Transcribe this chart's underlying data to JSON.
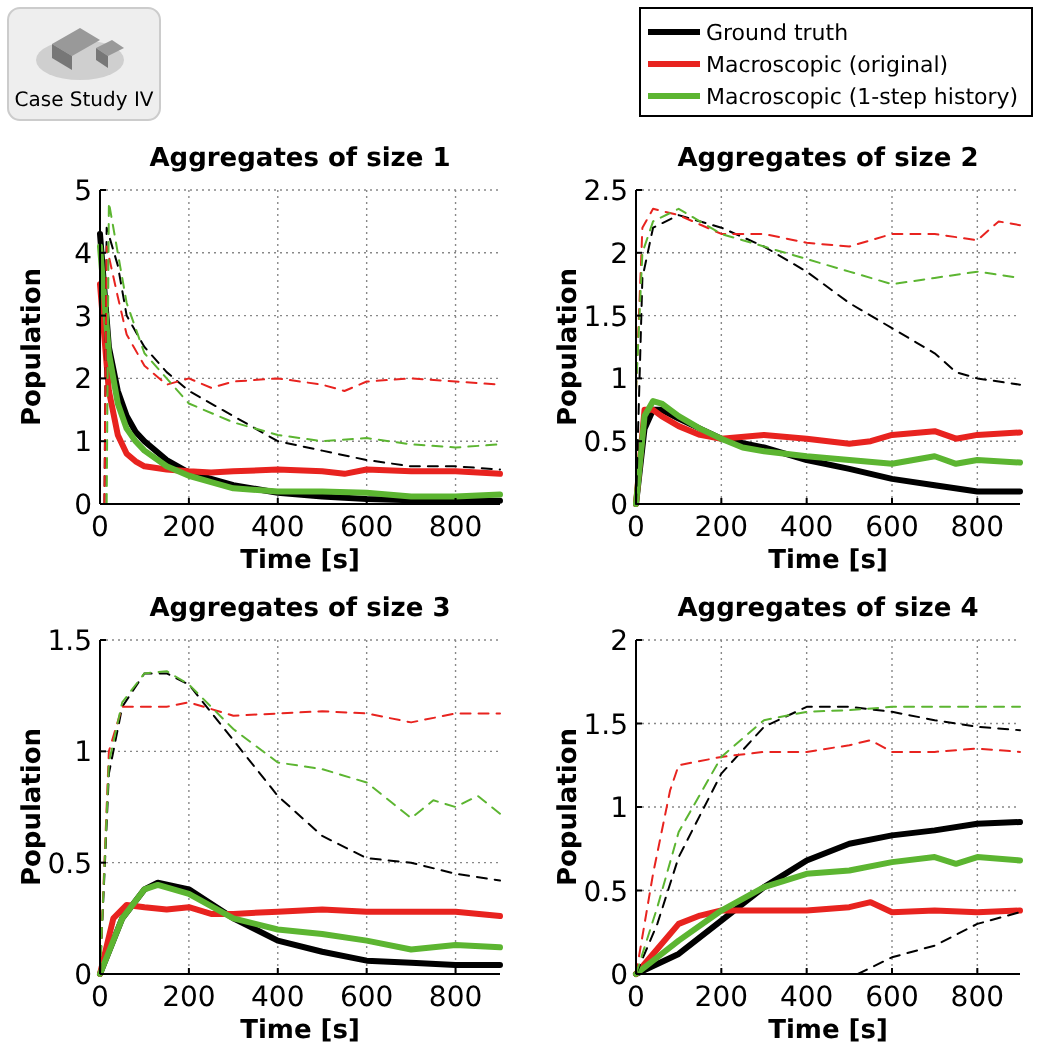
{
  "chart_data": [
    {
      "type": "line",
      "title": "Aggregates of size 1",
      "xlabel": "Time [s]",
      "ylabel": "Population",
      "xlim": [
        0,
        900
      ],
      "xticks": [
        0,
        200,
        400,
        600,
        800
      ],
      "ylim": [
        0,
        5
      ],
      "yticks": [
        0,
        1,
        2,
        3,
        4,
        5
      ],
      "grid": true,
      "annotations": [
        "Case Study IV"
      ],
      "series": [
        {
          "color": "#000000",
          "line_style": "solid",
          "x": [
            0,
            20,
            40,
            60,
            80,
            100,
            150,
            200,
            250,
            300,
            400,
            500,
            600,
            700,
            800,
            900
          ],
          "values": [
            4.3,
            2.5,
            1.8,
            1.4,
            1.15,
            1.0,
            0.7,
            0.5,
            0.4,
            0.3,
            0.18,
            0.12,
            0.08,
            0.06,
            0.05,
            0.05
          ]
        },
        {
          "color": "#e8231f",
          "line_style": "solid",
          "x": [
            0,
            20,
            40,
            60,
            80,
            100,
            150,
            200,
            250,
            300,
            400,
            500,
            550,
            600,
            700,
            800,
            900
          ],
          "values": [
            3.5,
            1.8,
            1.1,
            0.8,
            0.68,
            0.6,
            0.55,
            0.52,
            0.5,
            0.52,
            0.55,
            0.52,
            0.48,
            0.55,
            0.52,
            0.52,
            0.48
          ]
        },
        {
          "color": "#5cb531",
          "line_style": "solid",
          "x": [
            0,
            20,
            40,
            60,
            80,
            100,
            150,
            200,
            250,
            300,
            400,
            500,
            600,
            700,
            800,
            900
          ],
          "values": [
            4.1,
            2.4,
            1.6,
            1.2,
            1.0,
            0.85,
            0.6,
            0.45,
            0.35,
            0.25,
            0.2,
            0.2,
            0.18,
            0.12,
            0.12,
            0.15
          ]
        },
        {
          "color": "#000000",
          "line_style": "dashed",
          "x": [
            10,
            15,
            40,
            60,
            100,
            150,
            200,
            300,
            400,
            500,
            600,
            700,
            800,
            900
          ],
          "values": [
            0,
            4.4,
            3.8,
            3.0,
            2.5,
            2.1,
            1.8,
            1.4,
            1.0,
            0.85,
            0.7,
            0.6,
            0.6,
            0.55
          ]
        },
        {
          "color": "#e8231f",
          "line_style": "dashed",
          "x": [
            10,
            15,
            40,
            60,
            100,
            150,
            200,
            250,
            300,
            400,
            500,
            550,
            600,
            700,
            800,
            900
          ],
          "values": [
            0,
            4.1,
            3.3,
            2.7,
            2.2,
            1.9,
            2.0,
            1.85,
            1.95,
            2.0,
            1.9,
            1.8,
            1.95,
            2.0,
            1.95,
            1.9
          ]
        },
        {
          "color": "#5cb531",
          "line_style": "dashed",
          "x": [
            15,
            20,
            40,
            60,
            80,
            100,
            150,
            200,
            300,
            400,
            500,
            600,
            700,
            800,
            900
          ],
          "values": [
            0,
            4.8,
            4.0,
            3.2,
            2.8,
            2.4,
            2.0,
            1.6,
            1.3,
            1.1,
            1.0,
            1.05,
            0.95,
            0.9,
            0.95
          ]
        }
      ]
    },
    {
      "type": "line",
      "title": "Aggregates of size 2",
      "xlabel": "Time [s]",
      "ylabel": "Population",
      "xlim": [
        0,
        900
      ],
      "xticks": [
        0,
        200,
        400,
        600,
        800
      ],
      "ylim": [
        0,
        2.5
      ],
      "yticks": [
        0,
        0.5,
        1,
        1.5,
        2,
        2.5
      ],
      "grid": true,
      "legend": "top right",
      "series": [
        {
          "name": "Ground truth",
          "color": "#000000",
          "line_style": "solid",
          "x": [
            0,
            20,
            40,
            60,
            100,
            150,
            200,
            300,
            400,
            500,
            600,
            700,
            800,
            900
          ],
          "values": [
            0,
            0.6,
            0.75,
            0.75,
            0.68,
            0.6,
            0.52,
            0.45,
            0.35,
            0.28,
            0.2,
            0.15,
            0.1,
            0.1
          ]
        },
        {
          "name": "Macroscopic (original)",
          "color": "#e8231f",
          "line_style": "solid",
          "x": [
            0,
            20,
            40,
            60,
            100,
            150,
            200,
            300,
            400,
            500,
            550,
            600,
            700,
            750,
            800,
            900
          ],
          "values": [
            0,
            0.75,
            0.75,
            0.7,
            0.62,
            0.55,
            0.52,
            0.55,
            0.52,
            0.48,
            0.5,
            0.55,
            0.58,
            0.52,
            0.55,
            0.57
          ]
        },
        {
          "name": "Macroscopic (1-step history)",
          "color": "#5cb531",
          "line_style": "solid",
          "x": [
            0,
            20,
            40,
            60,
            100,
            150,
            200,
            250,
            300,
            400,
            500,
            600,
            700,
            750,
            800,
            900
          ],
          "values": [
            0,
            0.7,
            0.82,
            0.8,
            0.7,
            0.6,
            0.52,
            0.45,
            0.42,
            0.38,
            0.35,
            0.32,
            0.38,
            0.32,
            0.35,
            0.33
          ]
        },
        {
          "color": "#000000",
          "line_style": "dashed",
          "x": [
            0,
            15,
            40,
            100,
            200,
            300,
            400,
            500,
            600,
            700,
            750,
            800,
            900
          ],
          "values": [
            0,
            1.8,
            2.2,
            2.3,
            2.2,
            2.05,
            1.85,
            1.6,
            1.4,
            1.2,
            1.05,
            1.0,
            0.95
          ]
        },
        {
          "color": "#e8231f",
          "line_style": "dashed",
          "x": [
            0,
            15,
            40,
            100,
            200,
            300,
            400,
            500,
            600,
            700,
            800,
            850,
            900
          ],
          "values": [
            0.9,
            2.2,
            2.35,
            2.3,
            2.15,
            2.15,
            2.08,
            2.05,
            2.15,
            2.15,
            2.1,
            2.25,
            2.22
          ]
        },
        {
          "color": "#5cb531",
          "line_style": "dashed",
          "x": [
            0,
            15,
            40,
            100,
            200,
            300,
            400,
            500,
            600,
            700,
            800,
            900
          ],
          "values": [
            0.9,
            2.0,
            2.25,
            2.35,
            2.15,
            2.05,
            1.95,
            1.85,
            1.75,
            1.8,
            1.85,
            1.8
          ]
        }
      ]
    },
    {
      "type": "line",
      "title": "Aggregates of size 3",
      "xlabel": "Time [s]",
      "ylabel": "Population",
      "xlim": [
        0,
        900
      ],
      "xticks": [
        0,
        200,
        400,
        600,
        800
      ],
      "ylim": [
        0,
        1.5
      ],
      "yticks": [
        0,
        0.5,
        1,
        1.5
      ],
      "grid": true,
      "series": [
        {
          "color": "#000000",
          "line_style": "solid",
          "x": [
            0,
            50,
            100,
            130,
            200,
            300,
            400,
            500,
            600,
            700,
            800,
            900
          ],
          "values": [
            0,
            0.25,
            0.38,
            0.41,
            0.38,
            0.25,
            0.15,
            0.1,
            0.06,
            0.05,
            0.04,
            0.04
          ]
        },
        {
          "color": "#e8231f",
          "line_style": "solid",
          "x": [
            0,
            30,
            60,
            100,
            150,
            200,
            250,
            300,
            400,
            500,
            600,
            700,
            800,
            900
          ],
          "values": [
            0,
            0.25,
            0.31,
            0.3,
            0.29,
            0.3,
            0.27,
            0.27,
            0.28,
            0.29,
            0.28,
            0.28,
            0.28,
            0.26
          ]
        },
        {
          "color": "#5cb531",
          "line_style": "solid",
          "x": [
            0,
            50,
            100,
            130,
            200,
            300,
            400,
            500,
            600,
            700,
            800,
            900
          ],
          "values": [
            0,
            0.25,
            0.38,
            0.4,
            0.36,
            0.25,
            0.2,
            0.18,
            0.15,
            0.11,
            0.13,
            0.12
          ]
        },
        {
          "color": "#000000",
          "line_style": "dashed",
          "x": [
            0,
            20,
            50,
            100,
            150,
            200,
            300,
            400,
            500,
            600,
            700,
            800,
            900
          ],
          "values": [
            0,
            0.9,
            1.2,
            1.35,
            1.35,
            1.3,
            1.05,
            0.8,
            0.62,
            0.52,
            0.5,
            0.45,
            0.42
          ]
        },
        {
          "color": "#e8231f",
          "line_style": "dashed",
          "x": [
            0,
            20,
            50,
            100,
            150,
            200,
            300,
            400,
            500,
            600,
            700,
            800,
            900
          ],
          "values": [
            0,
            1.0,
            1.2,
            1.2,
            1.2,
            1.22,
            1.16,
            1.17,
            1.18,
            1.17,
            1.13,
            1.17,
            1.17
          ]
        },
        {
          "color": "#5cb531",
          "line_style": "dashed",
          "x": [
            0,
            20,
            50,
            100,
            150,
            200,
            300,
            400,
            500,
            600,
            700,
            750,
            800,
            850,
            900
          ],
          "values": [
            0,
            0.95,
            1.22,
            1.35,
            1.36,
            1.3,
            1.1,
            0.95,
            0.92,
            0.86,
            0.7,
            0.78,
            0.75,
            0.8,
            0.72
          ]
        }
      ]
    },
    {
      "type": "line",
      "title": "Aggregates of size 4",
      "xlabel": "Time [s]",
      "ylabel": "Population",
      "xlim": [
        0,
        900
      ],
      "xticks": [
        0,
        200,
        400,
        600,
        800
      ],
      "ylim": [
        0,
        2
      ],
      "yticks": [
        0,
        0.5,
        1,
        1.5,
        2
      ],
      "grid": true,
      "series": [
        {
          "color": "#000000",
          "line_style": "solid",
          "x": [
            0,
            100,
            200,
            300,
            400,
            500,
            600,
            700,
            800,
            900
          ],
          "values": [
            0,
            0.12,
            0.32,
            0.52,
            0.68,
            0.78,
            0.83,
            0.86,
            0.9,
            0.91
          ]
        },
        {
          "color": "#e8231f",
          "line_style": "solid",
          "x": [
            0,
            50,
            100,
            150,
            200,
            300,
            400,
            500,
            550,
            600,
            700,
            800,
            900
          ],
          "values": [
            0,
            0.15,
            0.3,
            0.35,
            0.38,
            0.38,
            0.38,
            0.4,
            0.43,
            0.37,
            0.38,
            0.37,
            0.38
          ]
        },
        {
          "color": "#5cb531",
          "line_style": "solid",
          "x": [
            0,
            100,
            200,
            300,
            400,
            500,
            600,
            700,
            750,
            800,
            900
          ],
          "values": [
            0,
            0.2,
            0.38,
            0.52,
            0.6,
            0.62,
            0.67,
            0.7,
            0.66,
            0.7,
            0.68
          ]
        },
        {
          "color": "#000000",
          "line_style": "dashed",
          "x": [
            0,
            50,
            100,
            200,
            300,
            400,
            500,
            600,
            700,
            800,
            900
          ],
          "values": [
            0,
            0.3,
            0.7,
            1.2,
            1.48,
            1.6,
            1.6,
            1.57,
            1.52,
            1.48,
            1.46
          ]
        },
        {
          "color": "#000000",
          "line_style": "dashed",
          "x": [
            520,
            600,
            700,
            800,
            900
          ],
          "values": [
            0,
            0.1,
            0.17,
            0.3,
            0.37
          ]
        },
        {
          "color": "#e8231f",
          "line_style": "dashed",
          "x": [
            0,
            40,
            80,
            100,
            200,
            300,
            400,
            500,
            550,
            600,
            700,
            800,
            900
          ],
          "values": [
            0,
            0.6,
            1.1,
            1.25,
            1.3,
            1.33,
            1.33,
            1.37,
            1.4,
            1.33,
            1.33,
            1.35,
            1.33
          ]
        },
        {
          "color": "#5cb531",
          "line_style": "dashed",
          "x": [
            0,
            50,
            100,
            200,
            300,
            400,
            500,
            600,
            700,
            800,
            900
          ],
          "values": [
            0,
            0.4,
            0.85,
            1.3,
            1.52,
            1.57,
            1.58,
            1.6,
            1.6,
            1.6,
            1.6
          ]
        }
      ]
    }
  ]
}
